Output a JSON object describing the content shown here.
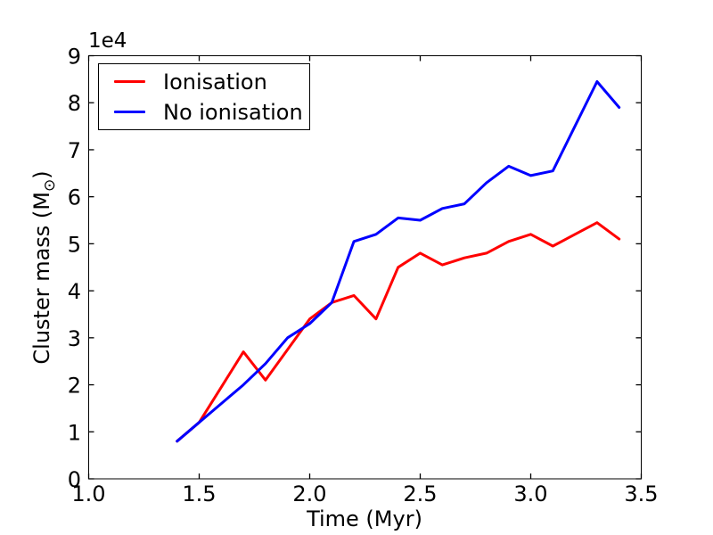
{
  "chart_data": {
    "type": "line",
    "title": "",
    "xlabel": "Time (Myr)",
    "ylabel": "Cluster mass (M⊙)",
    "ylabel_parts": {
      "main": "Cluster mass (M",
      "sub": "⊙",
      "end": ")"
    },
    "y_offset_text": "1e4",
    "x": [
      1.4,
      1.5,
      1.6,
      1.7,
      1.8,
      1.9,
      2.0,
      2.1,
      2.2,
      2.3,
      2.4,
      2.5,
      2.6,
      2.7,
      2.8,
      2.9,
      3.0,
      3.1,
      3.2,
      3.3,
      3.4
    ],
    "series": [
      {
        "name": "Ionisation",
        "color": "#ff0000",
        "values": [
          8000,
          12000,
          19500,
          27000,
          21000,
          27500,
          34000,
          37500,
          39000,
          34000,
          45000,
          48000,
          45500,
          47000,
          48000,
          50500,
          52000,
          49500,
          52000,
          54500,
          51000
        ]
      },
      {
        "name": "No ionisation",
        "color": "#0000ff",
        "values": [
          8000,
          12000,
          16000,
          20000,
          24500,
          30000,
          33000,
          37500,
          50500,
          52000,
          55500,
          55000,
          57500,
          58500,
          63000,
          66500,
          64500,
          65500,
          75000,
          84500,
          79000
        ]
      }
    ],
    "xlim": [
      1.0,
      3.5
    ],
    "ylim": [
      0,
      90000
    ],
    "xticks": [
      1.0,
      1.5,
      2.0,
      2.5,
      3.0,
      3.5
    ],
    "xtick_labels": [
      "1.0",
      "1.5",
      "2.0",
      "2.5",
      "3.0",
      "3.5"
    ],
    "yticks": [
      0,
      10000,
      20000,
      30000,
      40000,
      50000,
      60000,
      70000,
      80000,
      90000
    ],
    "ytick_labels": [
      "0",
      "1",
      "2",
      "3",
      "4",
      "5",
      "6",
      "7",
      "8",
      "9"
    ],
    "grid": false,
    "legend_position": "upper left",
    "axis_color": "#000000",
    "background_color": "#ffffff"
  }
}
